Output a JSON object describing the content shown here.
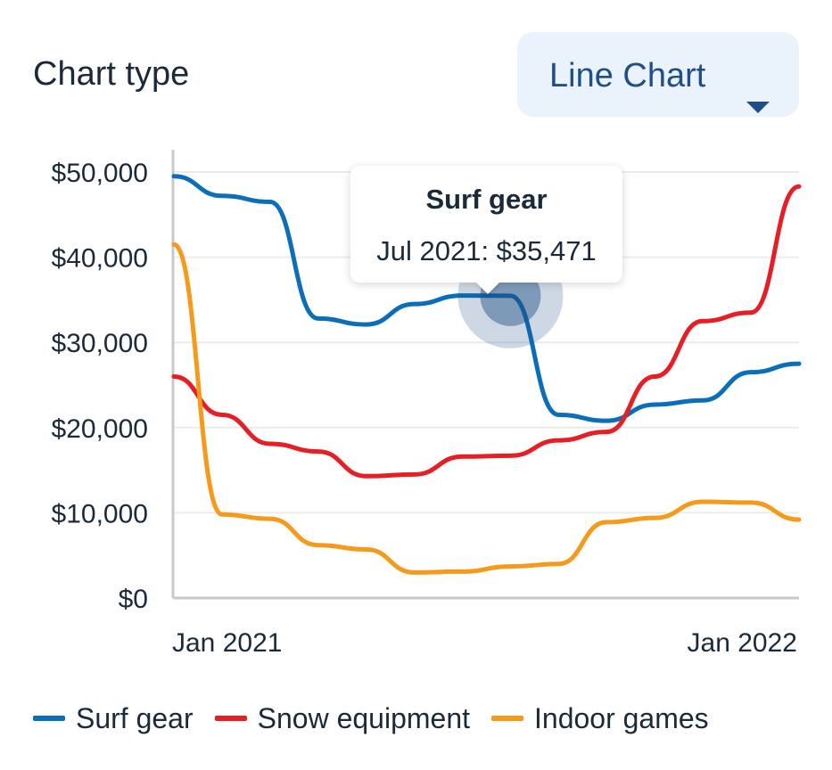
{
  "controls": {
    "chart_type_label": "Chart type",
    "chart_type_value": "Line Chart"
  },
  "tooltip": {
    "series": "Surf gear",
    "text": "Jul 2021: $35,471",
    "x": "2021-07",
    "y": 35471
  },
  "colors": {
    "Surf gear": "#0a6fb8",
    "Snow equipment": "#e61e25",
    "Indoor games": "#f59a1b",
    "grid": "#ebebeb",
    "axis": "#c8c8c8"
  },
  "chart_data": {
    "type": "line",
    "title": "",
    "xlabel": "",
    "ylabel": "",
    "x": [
      "2020-12",
      "2021-01",
      "2021-02",
      "2021-03",
      "2021-04",
      "2021-05",
      "2021-06",
      "2021-07",
      "2021-08",
      "2021-09",
      "2021-10",
      "2021-11",
      "2021-12",
      "2022-01"
    ],
    "x_ticks": [
      {
        "x": "2021-01",
        "label": "Jan 2021"
      },
      {
        "x": "2022-01",
        "label": "Jan 2022"
      }
    ],
    "ylim": [
      0,
      50000
    ],
    "y_ticks": [
      {
        "value": 0,
        "label": "$0"
      },
      {
        "value": 10000,
        "label": "$10,000"
      },
      {
        "value": 20000,
        "label": "$20,000"
      },
      {
        "value": 30000,
        "label": "$30,000"
      },
      {
        "value": 40000,
        "label": "$40,000"
      },
      {
        "value": 50000,
        "label": "$50,000"
      }
    ],
    "grid": true,
    "legend": "bottom",
    "series": [
      {
        "name": "Surf gear",
        "values": [
          49500,
          47200,
          46500,
          32800,
          32100,
          34500,
          35500,
          35471,
          21500,
          20800,
          22700,
          23200,
          26500,
          27500
        ]
      },
      {
        "name": "Snow equipment",
        "values": [
          26000,
          21500,
          18100,
          17200,
          14300,
          14500,
          16600,
          16700,
          18500,
          19500,
          26000,
          32500,
          33500,
          48300
        ]
      },
      {
        "name": "Indoor games",
        "values": [
          41500,
          9800,
          9300,
          6200,
          5700,
          3000,
          3100,
          3700,
          4000,
          8900,
          9400,
          11300,
          11200,
          9200
        ]
      }
    ]
  }
}
